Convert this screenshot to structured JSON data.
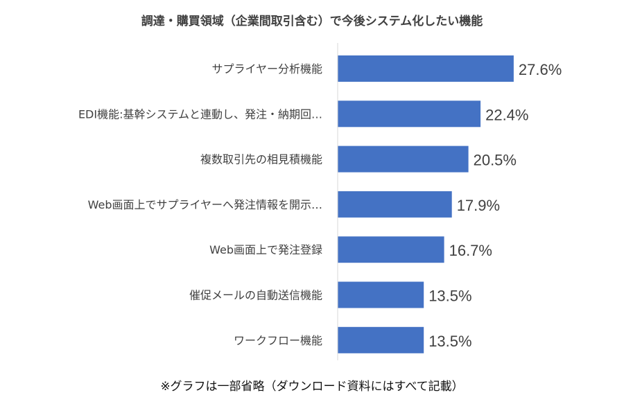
{
  "chart_data": {
    "type": "bar",
    "orientation": "horizontal",
    "title": "調達・購買領域（企業間取引含む）で今後システム化したい機能",
    "footnote": "※グラフは一部省略（ダウンロード資料にはすべて記載）",
    "categories": [
      "サプライヤー分析機能",
      "EDI機能:基幹システムと連動し、発注・納期回…",
      "複数取引先の相見積機能",
      "Web画面上でサプライヤーへ発注情報を開示…",
      "Web画面上で発注登録",
      "催促メールの自動送信機能",
      "ワークフロー機能"
    ],
    "values": [
      27.6,
      22.4,
      20.5,
      17.9,
      16.7,
      13.5,
      13.5
    ],
    "value_labels": [
      "27.6%",
      "22.4%",
      "20.5%",
      "17.9%",
      "16.7%",
      "13.5%",
      "13.5%"
    ],
    "unit": "%",
    "xlim": [
      0,
      30
    ],
    "grid": false,
    "legend": "none",
    "bar_color": "#4472C4",
    "axis_color": "#D9D9D9"
  }
}
